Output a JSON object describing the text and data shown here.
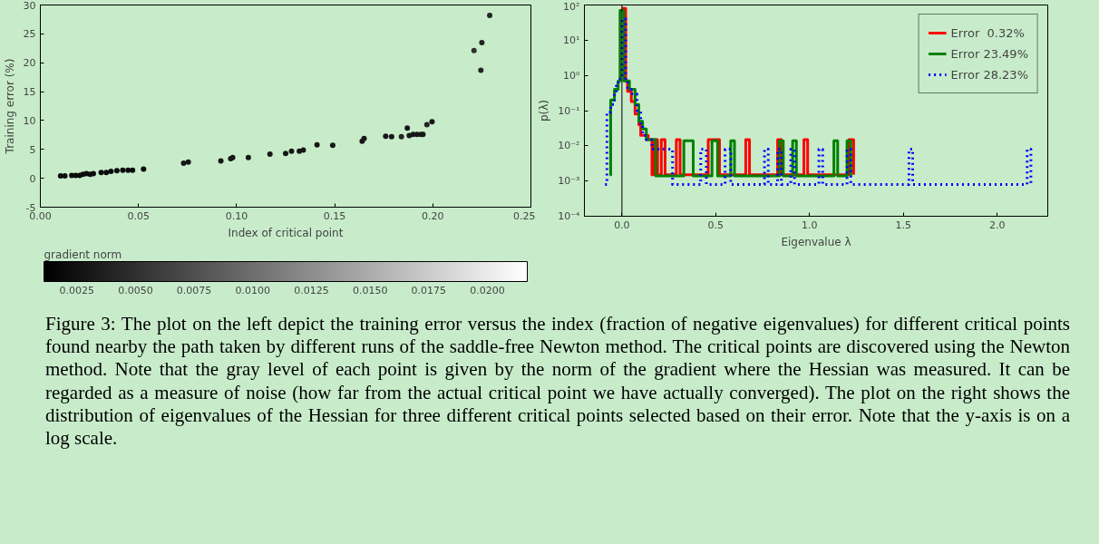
{
  "chart_data": [
    {
      "type": "scatter",
      "xlabel": "Index of critical point",
      "ylabel": "Training error (%)",
      "clabel": "gradient norm",
      "x": [
        0.0103,
        0.0125,
        0.016,
        0.018,
        0.02,
        0.0217,
        0.0235,
        0.0254,
        0.027,
        0.031,
        0.0336,
        0.036,
        0.039,
        0.042,
        0.0447,
        0.047,
        0.0526,
        0.073,
        0.0754,
        0.092,
        0.097,
        0.098,
        0.106,
        0.117,
        0.125,
        0.128,
        0.132,
        0.134,
        0.141,
        0.149,
        0.164,
        0.165,
        0.176,
        0.179,
        0.184,
        0.187,
        0.188,
        0.19,
        0.192,
        0.194,
        0.195,
        0.197,
        0.1996,
        0.221,
        0.2245,
        0.225,
        0.229
      ],
      "values": [
        0.4,
        0.4,
        0.5,
        0.5,
        0.5,
        0.7,
        0.8,
        0.7,
        0.8,
        1.0,
        1.0,
        1.2,
        1.3,
        1.4,
        1.4,
        1.4,
        1.6,
        2.6,
        2.8,
        3.0,
        3.4,
        3.6,
        3.6,
        4.2,
        4.3,
        4.7,
        4.7,
        4.9,
        5.8,
        5.7,
        6.4,
        6.9,
        7.3,
        7.2,
        7.2,
        8.7,
        7.4,
        7.6,
        7.6,
        7.6,
        7.6,
        9.3,
        9.8,
        22.1,
        18.7,
        23.5,
        28.2
      ],
      "cvalues": [
        0.002,
        0.002,
        0.002,
        0.002,
        0.002,
        0.002,
        0.002,
        0.002,
        0.002,
        0.002,
        0.002,
        0.002,
        0.002,
        0.002,
        0.002,
        0.002,
        0.002,
        0.003,
        0.003,
        0.003,
        0.003,
        0.003,
        0.003,
        0.003,
        0.003,
        0.003,
        0.003,
        0.003,
        0.003,
        0.003,
        0.003,
        0.003,
        0.003,
        0.003,
        0.004,
        0.003,
        0.003,
        0.003,
        0.003,
        0.003,
        0.003,
        0.004,
        0.003,
        0.005,
        0.004,
        0.004,
        0.004
      ],
      "marker": "circle",
      "grid": false,
      "xlim": [
        0,
        0.25
      ],
      "xticks": [
        {
          "value": 0,
          "label": "0.00"
        },
        {
          "value": 0.05,
          "label": "0.05"
        },
        {
          "value": 0.1,
          "label": "0.10"
        },
        {
          "value": 0.15,
          "label": "0.15"
        },
        {
          "value": 0.2,
          "label": "0.20"
        },
        {
          "value": 0.25,
          "label": "0.25"
        }
      ],
      "ylim": [
        -5,
        30
      ],
      "yticks": [
        -5,
        0,
        5,
        10,
        15,
        20,
        25,
        30
      ],
      "clim": [
        0.0011,
        0.0217
      ],
      "cticks": [
        {
          "value": 0.0025,
          "label": "0.0025"
        },
        {
          "value": 0.005,
          "label": "0.0050"
        },
        {
          "value": 0.0075,
          "label": "0.0075"
        },
        {
          "value": 0.01,
          "label": "0.0100"
        },
        {
          "value": 0.0125,
          "label": "0.0125"
        },
        {
          "value": 0.015,
          "label": "0.0150"
        },
        {
          "value": 0.0175,
          "label": "0.0175"
        },
        {
          "value": 0.02,
          "label": "0.0200"
        }
      ],
      "annotations": [
        "Figure 3:   The plot on the left depict the training error versus the index (fraction of negative eigenvalues) for different critical points found nearby the path taken by different runs of the saddle-free Newton method. The critical points are discovered using the Newton method. Note that the gray level of each point is given by the norm of the gradient where the Hessian was measured. It can be regarded as a measure of noise (how far from the actual critical point we have actually converged). The plot on the right shows the distribution of eigenvalues of the Hessian for three different critical points selected based on their error. Note that the y-axis is on a log scale."
      ]
    },
    {
      "type": "step",
      "xlabel": "Eigenvalue λ",
      "ylabel": "p(λ)",
      "log": "y",
      "grid": false,
      "legend": "top right",
      "xlim": [
        -0.2,
        2.27
      ],
      "xticks": [
        {
          "value": 0,
          "label": "0.0"
        },
        {
          "value": 0.5,
          "label": "0.5"
        },
        {
          "value": 1,
          "label": "1.0"
        },
        {
          "value": 1.5,
          "label": "1.5"
        },
        {
          "value": 2,
          "label": "2.0"
        }
      ],
      "ylim": [
        0.0001,
        100
      ],
      "yticks": [
        {
          "value": 0.0001,
          "label": "10⁻⁴"
        },
        {
          "value": 0.001,
          "label": "10⁻³"
        },
        {
          "value": 0.01,
          "label": "10⁻²"
        },
        {
          "value": 0.1,
          "label": "10⁻¹"
        },
        {
          "value": 1,
          "label": "10⁰"
        },
        {
          "value": 10,
          "label": "10¹"
        },
        {
          "value": 100,
          "label": "10²"
        }
      ],
      "ref_lines": [
        {
          "axis": "x",
          "value": 0,
          "color": "#000000"
        }
      ],
      "series": [
        {
          "name": "Error  0.32%",
          "color": "#ff0000",
          "line_style": "solid",
          "x": [
            0,
            0.02,
            0.03,
            0.05,
            0.07,
            0.09,
            0.1,
            0.14,
            0.16,
            0.17,
            0.19,
            0.21,
            0.23,
            0.29,
            0.31,
            0.46,
            0.52,
            0.66,
            0.68,
            0.83,
            0.85,
            0.97,
            0.99,
            1.21,
            1.235
          ],
          "values": [
            80,
            0.7,
            0.35,
            0.18,
            0.08,
            0.04,
            0.02,
            0.015,
            0.0015,
            0.015,
            0.0015,
            0.015,
            0.0015,
            0.015,
            0.0015,
            0.015,
            0.0015,
            0.015,
            0.0015,
            0.015,
            0.0015,
            0.015,
            0.0015,
            0.015,
            0.0015
          ]
        },
        {
          "name": "Error 23.49%",
          "color": "#008000",
          "line_style": "solid",
          "x": [
            -0.065,
            -0.06,
            -0.04,
            -0.02,
            -0.01,
            0.01,
            0.04,
            0.07,
            0.09,
            0.11,
            0.13,
            0.18,
            0.33,
            0.38,
            0.48,
            0.51,
            0.58,
            0.6,
            0.84,
            0.86,
            0.91,
            0.93,
            1.13,
            1.15,
            1.2,
            1.22
          ],
          "values": [
            0.0015,
            0.2,
            0.4,
            0.7,
            70,
            0.7,
            0.4,
            0.15,
            0.05,
            0.03,
            0.015,
            0.0014,
            0.014,
            0.0014,
            0.014,
            0.0014,
            0.014,
            0.0014,
            0.014,
            0.0014,
            0.014,
            0.0014,
            0.014,
            0.0014,
            0.014,
            0.0014
          ]
        },
        {
          "name": "Error 28.23%",
          "color": "#0000ff",
          "line_style": "dotted",
          "x": [
            -0.09,
            -0.08,
            -0.06,
            -0.04,
            -0.03,
            -0.02,
            0.0,
            0.02,
            0.03,
            0.05,
            0.08,
            0.1,
            0.11,
            0.13,
            0.16,
            0.2,
            0.27,
            0.42,
            0.45,
            0.55,
            0.58,
            0.76,
            0.78,
            0.83,
            0.85,
            0.9,
            0.92,
            1.05,
            1.07,
            1.2,
            1.22,
            1.53,
            1.55,
            2.16,
            2.18
          ],
          "values": [
            0.0008,
            0.09,
            0.15,
            0.3,
            0.5,
            0.8,
            40,
            0.7,
            0.4,
            0.3,
            0.1,
            0.04,
            0.02,
            0.015,
            0.008,
            0.008,
            0.0008,
            0.008,
            0.0008,
            0.008,
            0.0008,
            0.008,
            0.0008,
            0.008,
            0.0008,
            0.008,
            0.0008,
            0.008,
            0.0008,
            0.008,
            0.0008,
            0.008,
            0.0008,
            0.008,
            0.0008
          ]
        }
      ]
    }
  ]
}
